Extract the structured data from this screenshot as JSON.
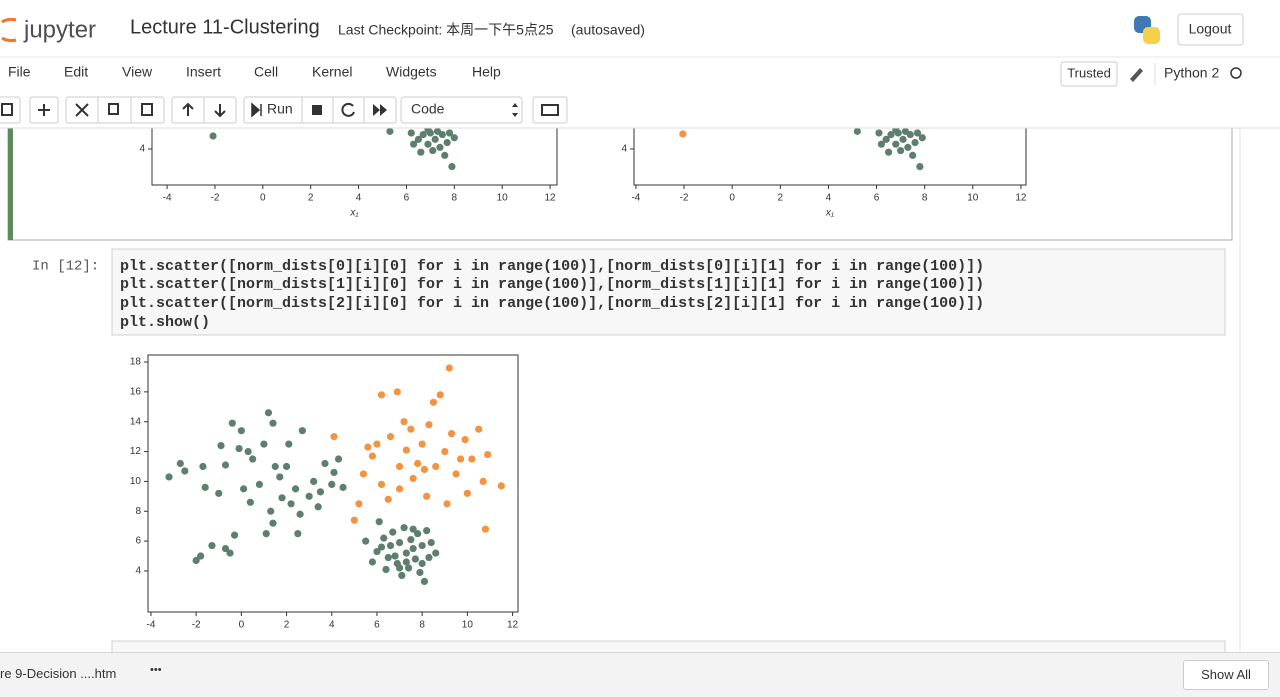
{
  "header": {
    "logo": "jupyter",
    "title": "Lecture 11-Clustering",
    "checkpoint": "Last Checkpoint: 本周一下午5点25",
    "autosave": "(autosaved)",
    "logout": "Logout"
  },
  "menu": {
    "items": [
      "File",
      "Edit",
      "View",
      "Insert",
      "Cell",
      "Kernel",
      "Widgets",
      "Help"
    ],
    "trusted": "Trusted",
    "kernel": "Python 2"
  },
  "toolbar": {
    "run": "Run",
    "cell_type": "Code"
  },
  "cell": {
    "prompt": "In [12]:",
    "code": [
      "plt.scatter([norm_dists[0][i][0] for i in range(100)],[norm_dists[0][i][1] for i in range(100)])",
      "plt.scatter([norm_dists[1][i][0] for i in range(100)],[norm_dists[1][i][1] for i in range(100)])",
      "plt.scatter([norm_dists[2][i][0] for i in range(100)],[norm_dists[2][i][1] for i in range(100)])",
      "plt.show()"
    ]
  },
  "chart_data": [
    {
      "type": "scatter",
      "xlabel": "x₁",
      "xlim": [
        -4.63,
        12.29
      ],
      "ylim": [
        1.75,
        5.31
      ],
      "xticks": [
        -4,
        -2,
        0,
        2,
        4,
        6,
        8,
        10,
        12
      ],
      "yticks": [
        4
      ],
      "series": [
        {
          "color": "#5e7f6e",
          "x": [
            -2.08,
            5.31,
            6.2,
            6.5,
            6.7,
            6.9,
            7.0,
            7.2,
            7.4,
            7.5,
            7.7,
            7.8,
            6.6,
            7.1,
            7.6,
            7.9,
            6.3,
            8.0,
            6.9,
            7.3
          ],
          "values": [
            4.81,
            5.1,
            5.0,
            4.6,
            4.9,
            4.3,
            5.0,
            4.6,
            4.1,
            4.9,
            4.4,
            5.0,
            3.8,
            3.9,
            3.6,
            2.9,
            4.3,
            4.7,
            5.2,
            5.1
          ]
        }
      ]
    },
    {
      "type": "scatter",
      "xlabel": "x₁",
      "xlim": [
        -4.08,
        12.21
      ],
      "ylim": [
        1.75,
        5.31
      ],
      "xticks": [
        -4,
        -2,
        0,
        2,
        4,
        6,
        8,
        10,
        12
      ],
      "yticks": [
        4
      ],
      "series": [
        {
          "color": "#f39340",
          "x": [
            -2.05
          ],
          "values": [
            4.94
          ]
        },
        {
          "color": "#5e7f6e",
          "x": [
            5.2,
            6.1,
            6.4,
            6.6,
            6.8,
            6.9,
            7.1,
            7.3,
            7.4,
            7.6,
            7.7,
            6.5,
            7.0,
            7.5,
            7.8,
            6.2,
            7.9,
            6.8,
            7.2
          ],
          "values": [
            5.1,
            5.0,
            4.6,
            4.9,
            4.3,
            5.0,
            4.6,
            4.1,
            4.9,
            4.4,
            5.0,
            3.8,
            3.9,
            3.6,
            2.9,
            4.3,
            4.7,
            5.2,
            5.1
          ]
        }
      ]
    },
    {
      "type": "scatter",
      "xlim": [
        -4.13,
        12.24
      ],
      "ylim": [
        1.25,
        18.47
      ],
      "xticks": [
        -4,
        -2,
        0,
        2,
        4,
        6,
        8,
        10,
        12
      ],
      "yticks": [
        4,
        6,
        8,
        10,
        12,
        14,
        16,
        18
      ],
      "series": [
        {
          "color": "#5e7f6e",
          "x": [
            -3.2,
            -2.7,
            -2.5,
            -1.7,
            -1.6,
            -2.0,
            -1.8,
            -1.3,
            -0.7,
            -0.5,
            -0.3,
            -0.9,
            -0.7,
            -0.4,
            0.0,
            -0.1,
            0.3,
            0.5,
            0.1,
            0.4,
            0.8,
            1.0,
            1.2,
            1.4,
            1.5,
            1.7,
            1.3,
            1.4,
            1.8,
            2.2,
            2.4,
            2.6,
            3.0,
            3.2,
            3.5,
            3.7,
            4.0,
            4.1,
            4.3,
            4.5,
            2.1,
            2.7,
            1.1,
            2.5,
            -1.0,
            3.4,
            2.0
          ],
          "values": [
            10.3,
            11.2,
            10.7,
            11.0,
            9.6,
            4.7,
            5.0,
            5.7,
            5.5,
            5.2,
            6.4,
            12.4,
            11.1,
            13.9,
            13.4,
            12.2,
            12.0,
            11.5,
            9.5,
            8.6,
            9.8,
            12.5,
            14.6,
            13.9,
            11.0,
            10.3,
            8.0,
            7.2,
            8.9,
            8.5,
            9.5,
            7.8,
            9.0,
            10.0,
            9.3,
            11.2,
            9.8,
            10.6,
            11.5,
            9.6,
            12.5,
            13.4,
            6.5,
            6.5,
            9.2,
            8.3,
            11.0
          ]
        },
        {
          "color": "#f39340",
          "x": [
            4.1,
            5.0,
            5.2,
            5.4,
            5.8,
            5.6,
            6.0,
            6.2,
            6.5,
            6.6,
            6.2,
            6.9,
            7.0,
            7.2,
            7.5,
            7.3,
            7.6,
            7.8,
            8.0,
            8.2,
            8.3,
            8.5,
            8.8,
            8.6,
            9.0,
            9.2,
            9.3,
            9.5,
            9.7,
            9.9,
            10.0,
            10.2,
            10.5,
            10.7,
            10.9,
            10.8,
            11.5,
            8.1,
            7.0,
            9.1
          ],
          "values": [
            13.0,
            7.4,
            8.5,
            10.5,
            11.7,
            12.3,
            12.5,
            9.8,
            8.8,
            13.0,
            15.8,
            16.0,
            11.0,
            14.0,
            13.5,
            12.1,
            10.2,
            11.2,
            12.5,
            9.0,
            13.8,
            15.3,
            15.8,
            11.0,
            12.0,
            17.6,
            13.2,
            10.5,
            11.5,
            12.8,
            9.2,
            11.5,
            13.5,
            10.0,
            11.8,
            6.8,
            9.7,
            10.8,
            9.5,
            8.5
          ]
        },
        {
          "color": "#5e7f6e",
          "x": [
            5.5,
            5.8,
            6.0,
            6.1,
            6.3,
            6.4,
            6.6,
            6.7,
            6.8,
            6.9,
            7.0,
            7.1,
            7.2,
            7.3,
            7.4,
            7.5,
            7.6,
            7.7,
            7.8,
            7.9,
            8.0,
            8.1,
            8.2,
            8.3,
            8.4,
            8.6,
            6.5,
            7.0,
            7.6,
            6.2,
            7.3,
            8.0
          ],
          "values": [
            6.0,
            4.6,
            5.3,
            7.3,
            6.2,
            4.1,
            5.7,
            6.6,
            5.0,
            4.5,
            5.9,
            3.7,
            6.9,
            5.2,
            4.2,
            6.1,
            5.5,
            4.8,
            6.5,
            3.9,
            5.7,
            3.3,
            6.7,
            4.9,
            5.9,
            5.2,
            4.9,
            4.2,
            6.8,
            5.6,
            4.6,
            4.5
          ]
        }
      ]
    }
  ],
  "download_bar": {
    "file": "re 9-Decision ....htm",
    "more": "•••",
    "show_all": "Show All"
  }
}
